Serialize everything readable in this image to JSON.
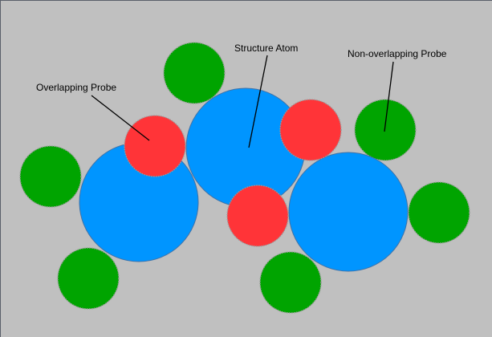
{
  "labels": {
    "overlapping_probe": "Overlapping Probe",
    "structure_atom": "Structure Atom",
    "non_overlapping_probe": "Non-overlapping Probe"
  },
  "colors": {
    "background": "#c0c0c0",
    "structure_atom": "#0095ff",
    "overlapping_probe": "#ff3438",
    "non_overlapping_probe": "#00a400",
    "probe_outline": "#9a9a9a",
    "text": "#000000"
  }
}
